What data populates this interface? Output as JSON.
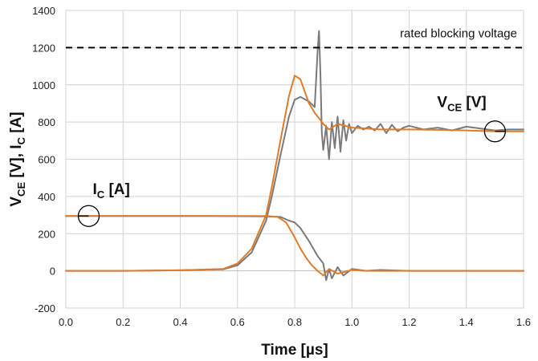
{
  "chart_data": {
    "type": "line",
    "xlabel": "Time [µs]",
    "ylabel": {
      "p1": "V",
      "p1_sub": "CE",
      "p2": " [V], I",
      "p2_sub": "C",
      "p3": " [A]"
    },
    "xlim": [
      0.0,
      1.6
    ],
    "ylim": [
      -200,
      1400
    ],
    "grid": true,
    "x_ticks": [
      0.0,
      0.2,
      0.4,
      0.6,
      0.8,
      1.0,
      1.2,
      1.4,
      1.6
    ],
    "x_tick_labels": [
      "0.0",
      "0.2",
      "0.4",
      "0.6",
      "0.8",
      "1.0",
      "1.2",
      "1.4",
      "1.6"
    ],
    "y_ticks": [
      -200,
      0,
      200,
      400,
      600,
      800,
      1000,
      1200,
      1400
    ],
    "y_tick_labels": [
      "-200",
      "0",
      "200",
      "400",
      "600",
      "800",
      "1000",
      "1200",
      "1400"
    ],
    "reference_line": {
      "y": 1200,
      "label": "rated blocking voltage",
      "style": "dashed",
      "color": "#000000"
    },
    "annotations": {
      "vce": {
        "main": "V",
        "sub": "CE",
        "tail": " [V]",
        "x": 1.5,
        "y": 750
      },
      "ic": {
        "main": "I",
        "sub": "C",
        "tail": " [A]",
        "x": 0.08,
        "y": 295
      }
    },
    "series": [
      {
        "name": "V_CE gray",
        "color": "#7a7a7a",
        "x": [
          0.0,
          0.2,
          0.4,
          0.55,
          0.6,
          0.65,
          0.7,
          0.72,
          0.75,
          0.78,
          0.8,
          0.82,
          0.85,
          0.87,
          0.88,
          0.885,
          0.89,
          0.895,
          0.9,
          0.91,
          0.92,
          0.93,
          0.94,
          0.95,
          0.96,
          0.97,
          0.98,
          0.99,
          1.0,
          1.02,
          1.04,
          1.06,
          1.08,
          1.1,
          1.12,
          1.14,
          1.16,
          1.18,
          1.2,
          1.25,
          1.3,
          1.35,
          1.4,
          1.45,
          1.5,
          1.55,
          1.6
        ],
        "values": [
          0,
          0,
          3,
          8,
          30,
          100,
          270,
          400,
          620,
          830,
          920,
          935,
          910,
          880,
          1180,
          1290,
          1050,
          740,
          650,
          780,
          600,
          800,
          660,
          830,
          640,
          810,
          700,
          790,
          740,
          780,
          760,
          775,
          755,
          790,
          740,
          785,
          750,
          770,
          780,
          760,
          770,
          755,
          775,
          765,
          755,
          760,
          760
        ]
      },
      {
        "name": "V_CE orange",
        "color": "#e07b2a",
        "x": [
          0.0,
          0.2,
          0.4,
          0.55,
          0.6,
          0.65,
          0.7,
          0.72,
          0.75,
          0.78,
          0.8,
          0.82,
          0.85,
          0.87,
          0.88,
          0.9,
          0.92,
          0.95,
          1.0,
          1.05,
          1.1,
          1.2,
          1.3,
          1.4,
          1.5,
          1.6
        ],
        "values": [
          0,
          0,
          3,
          10,
          40,
          120,
          300,
          450,
          700,
          940,
          1050,
          1030,
          900,
          850,
          830,
          790,
          760,
          790,
          770,
          765,
          760,
          760,
          758,
          755,
          750,
          750
        ]
      },
      {
        "name": "I_C gray",
        "color": "#7a7a7a",
        "x": [
          0.0,
          0.5,
          0.7,
          0.75,
          0.78,
          0.8,
          0.82,
          0.85,
          0.88,
          0.9,
          0.91,
          0.92,
          0.93,
          0.95,
          0.97,
          1.0,
          1.05,
          1.1,
          1.2,
          1.4,
          1.6
        ],
        "values": [
          295,
          295,
          293,
          290,
          270,
          260,
          230,
          160,
          80,
          40,
          -50,
          10,
          -40,
          20,
          -25,
          10,
          0,
          5,
          0,
          0,
          0
        ]
      },
      {
        "name": "I_C orange",
        "color": "#e07b2a",
        "x": [
          0.0,
          0.5,
          0.7,
          0.74,
          0.77,
          0.8,
          0.82,
          0.84,
          0.86,
          0.88,
          0.9,
          0.92,
          0.95,
          1.0,
          1.05,
          1.1,
          1.2,
          1.4,
          1.6
        ],
        "values": [
          295,
          295,
          295,
          290,
          260,
          180,
          120,
          70,
          30,
          0,
          -25,
          10,
          -15,
          5,
          0,
          0,
          0,
          0,
          0
        ]
      }
    ]
  }
}
